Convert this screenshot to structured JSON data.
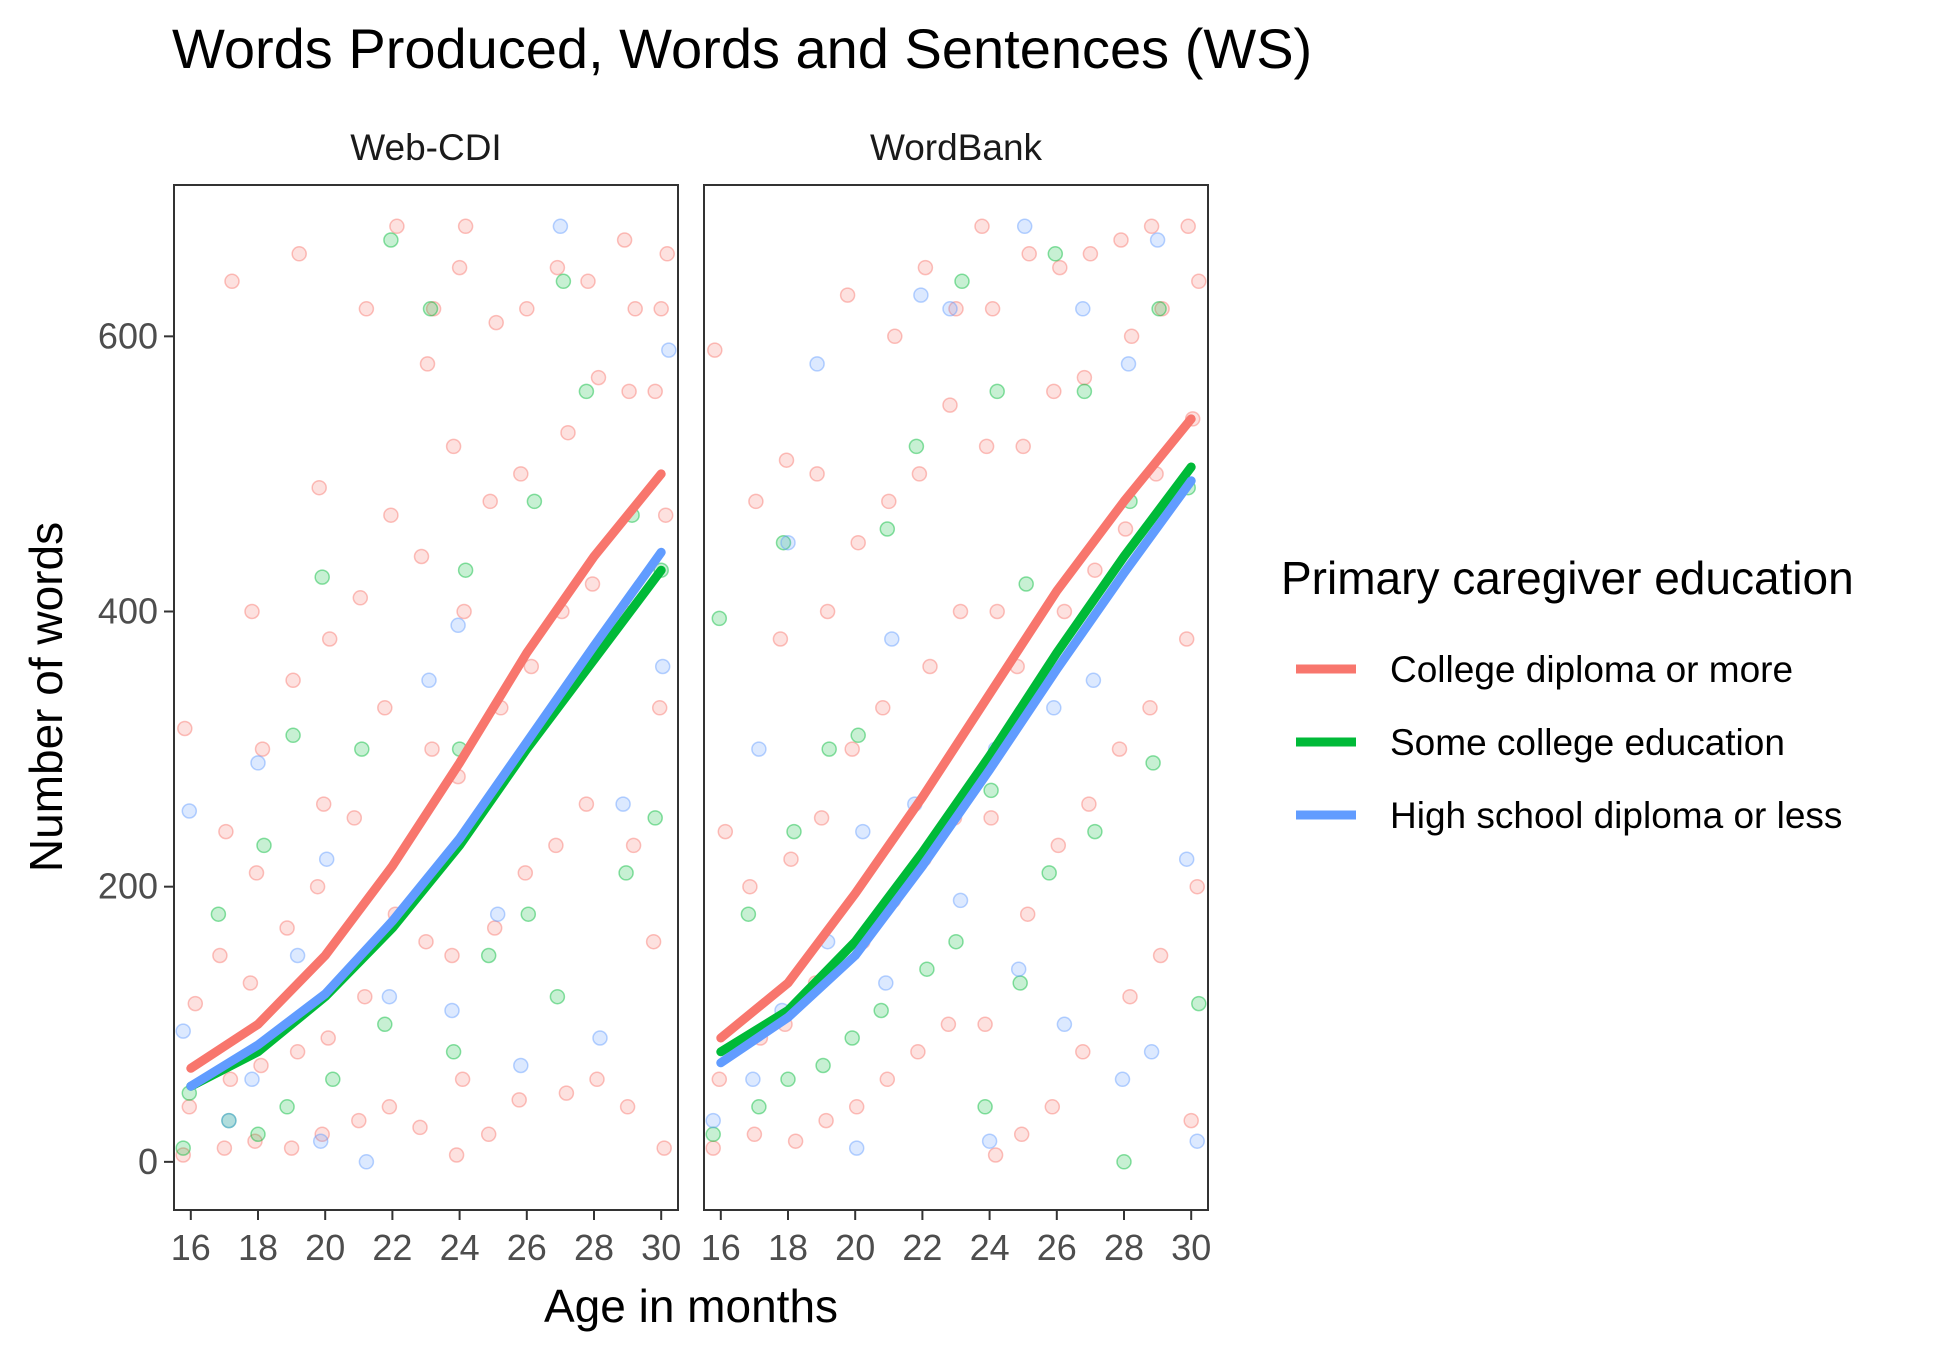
{
  "chart_data": {
    "type": "scatter",
    "title": "Words Produced, Words and Sentences (WS)",
    "xlabel": "Age in months",
    "ylabel": "Number of words",
    "xlim": [
      15.5,
      30.5
    ],
    "ylim": [
      -35,
      710
    ],
    "x_ticks": [
      16,
      18,
      20,
      22,
      24,
      26,
      28,
      30
    ],
    "y_ticks": [
      0,
      200,
      400,
      600
    ],
    "legend": {
      "title": "Primary caregiver education",
      "placement": "right"
    },
    "series": [
      {
        "name": "College diploma or more",
        "color": "#F8766D"
      },
      {
        "name": "Some college education",
        "color": "#00BA38"
      },
      {
        "name": "High school diploma or less",
        "color": "#619CFF"
      }
    ],
    "panels": [
      {
        "label": "Web-CDI",
        "smooth": [
          {
            "series": "College diploma or more",
            "x": [
              16,
              18,
              20,
              22,
              24,
              26,
              28,
              30
            ],
            "y": [
              68,
              100,
              150,
              215,
              290,
              370,
              440,
              500
            ]
          },
          {
            "series": "Some college education",
            "x": [
              16,
              18,
              20,
              22,
              24,
              26,
              28,
              30
            ],
            "y": [
              55,
              80,
              120,
              170,
              230,
              300,
              365,
              430
            ]
          },
          {
            "series": "High school diploma or less",
            "x": [
              16,
              18,
              20,
              22,
              24,
              26,
              28,
              30
            ],
            "y": [
              55,
              85,
              122,
              175,
              235,
              305,
              375,
              443
            ]
          }
        ],
        "points": [
          {
            "series": "College diploma or more",
            "x": [
              16,
              16,
              16,
              16,
              17,
              17,
              17,
              17,
              17,
              18,
              18,
              18,
              18,
              18,
              18,
              19,
              19,
              19,
              19,
              19,
              20,
              20,
              20,
              20,
              20,
              20,
              21,
              21,
              21,
              21,
              21,
              22,
              22,
              22,
              22,
              22,
              23,
              23,
              23,
              23,
              23,
              23,
              24,
              24,
              24,
              24,
              24,
              24,
              24,
              24,
              25,
              25,
              25,
              25,
              25,
              26,
              26,
              26,
              26,
              26,
              27,
              27,
              27,
              27,
              27,
              28,
              28,
              28,
              28,
              28,
              29,
              29,
              29,
              29,
              29,
              29,
              30,
              30,
              30,
              30,
              30,
              30,
              30
            ],
            "y": [
              5,
              40,
              115,
              315,
              10,
              60,
              150,
              240,
              640,
              15,
              70,
              130,
              210,
              300,
              400,
              10,
              80,
              170,
              350,
              660,
              20,
              90,
              200,
              260,
              380,
              490,
              30,
              120,
              250,
              410,
              620,
              40,
              180,
              330,
              470,
              680,
              25,
              160,
              300,
              440,
              580,
              620,
              5,
              60,
              150,
              280,
              400,
              520,
              650,
              680,
              20,
              170,
              330,
              480,
              610,
              45,
              210,
              360,
              500,
              620,
              50,
              230,
              400,
              530,
              650,
              60,
              260,
              420,
              570,
              640,
              40,
              230,
              400,
              560,
              620,
              670,
              10,
              160,
              330,
              470,
              560,
              620,
              660
            ]
          },
          {
            "series": "Some college education",
            "x": [
              16,
              16,
              17,
              17,
              18,
              18,
              19,
              19,
              20,
              20,
              21,
              22,
              22,
              23,
              24,
              24,
              24,
              25,
              26,
              26,
              27,
              27,
              28,
              29,
              29,
              30,
              30
            ],
            "y": [
              10,
              50,
              30,
              180,
              20,
              230,
              40,
              310,
              60,
              425,
              300,
              100,
              670,
              620,
              80,
              300,
              430,
              150,
              180,
              480,
              120,
              640,
              560,
              210,
              470,
              250,
              430
            ]
          },
          {
            "series": "High school diploma or less",
            "x": [
              16,
              16,
              17,
              18,
              18,
              19,
              20,
              20,
              21,
              22,
              23,
              24,
              24,
              25,
              26,
              27,
              28,
              29,
              30,
              30
            ],
            "y": [
              95,
              255,
              30,
              60,
              290,
              150,
              15,
              220,
              0,
              120,
              350,
              110,
              390,
              180,
              70,
              680,
              90,
              260,
              360,
              590
            ]
          }
        ]
      },
      {
        "label": "WordBank",
        "smooth": [
          {
            "series": "College diploma or more",
            "x": [
              16,
              18,
              20,
              22,
              24,
              26,
              28,
              30
            ],
            "y": [
              90,
              130,
              195,
              265,
              340,
              415,
              480,
              540
            ]
          },
          {
            "series": "Some college education",
            "x": [
              16,
              18,
              20,
              22,
              24,
              26,
              28,
              30
            ],
            "y": [
              80,
              110,
              160,
              225,
              295,
              370,
              440,
              505
            ]
          },
          {
            "series": "High school diploma or less",
            "x": [
              16,
              18,
              20,
              22,
              24,
              26,
              28,
              30
            ],
            "y": [
              72,
              105,
              150,
              215,
              285,
              358,
              428,
              495
            ]
          }
        ],
        "points": [
          {
            "series": "College diploma or more",
            "x": [
              16,
              16,
              16,
              16,
              17,
              17,
              17,
              17,
              18,
              18,
              18,
              18,
              18,
              19,
              19,
              19,
              19,
              19,
              20,
              20,
              20,
              20,
              20,
              21,
              21,
              21,
              21,
              21,
              22,
              22,
              22,
              22,
              22,
              23,
              23,
              23,
              23,
              23,
              24,
              24,
              24,
              24,
              24,
              24,
              24,
              25,
              25,
              25,
              25,
              25,
              26,
              26,
              26,
              26,
              26,
              27,
              27,
              27,
              27,
              27,
              28,
              28,
              28,
              28,
              28,
              29,
              29,
              29,
              29,
              29,
              30,
              30,
              30,
              30,
              30,
              30
            ],
            "y": [
              10,
              60,
              240,
              590,
              20,
              90,
              200,
              480,
              15,
              100,
              220,
              380,
              510,
              30,
              130,
              250,
              400,
              500,
              40,
              160,
              300,
              450,
              630,
              60,
              190,
              330,
              480,
              600,
              80,
              220,
              360,
              500,
              650,
              100,
              250,
              400,
              550,
              620,
              5,
              100,
              250,
              400,
              520,
              620,
              680,
              20,
              180,
              360,
              520,
              660,
              40,
              230,
              400,
              560,
              650,
              80,
              260,
              430,
              570,
              660,
              120,
              300,
              460,
              600,
              670,
              150,
              330,
              500,
              620,
              680,
              30,
              200,
              380,
              540,
              640,
              680
            ]
          },
          {
            "series": "Some college education",
            "x": [
              16,
              16,
              17,
              17,
              18,
              18,
              18,
              19,
              19,
              20,
              20,
              21,
              21,
              22,
              22,
              23,
              23,
              24,
              24,
              24,
              25,
              25,
              26,
              26,
              27,
              27,
              28,
              28,
              29,
              29,
              30,
              30
            ],
            "y": [
              20,
              395,
              40,
              180,
              60,
              240,
              450,
              70,
              300,
              90,
              310,
              110,
              460,
              140,
              520,
              160,
              640,
              40,
              270,
              560,
              130,
              420,
              210,
              660,
              240,
              560,
              0,
              480,
              290,
              620,
              115,
              490
            ]
          },
          {
            "series": "High school diploma or less",
            "x": [
              16,
              17,
              17,
              18,
              18,
              19,
              19,
              20,
              20,
              21,
              21,
              22,
              22,
              23,
              23,
              24,
              24,
              25,
              25,
              26,
              26,
              27,
              27,
              28,
              28,
              29,
              29,
              30,
              30
            ],
            "y": [
              30,
              60,
              300,
              110,
              450,
              160,
              580,
              10,
              240,
              130,
              380,
              260,
              630,
              190,
              620,
              15,
              300,
              140,
              680,
              100,
              330,
              350,
              620,
              60,
              580,
              80,
              670,
              15,
              220
            ]
          }
        ]
      }
    ]
  }
}
